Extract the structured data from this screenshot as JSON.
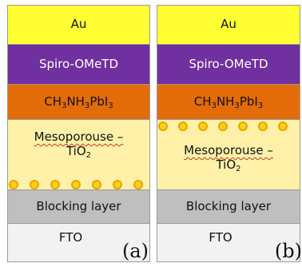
{
  "colors": {
    "au": "#ffff33",
    "spiro": "#7030a0",
    "mapi": "#e36c09",
    "meso": "#fff2a8",
    "blocking": "#bfbfbf",
    "fto": "#f2f2f2",
    "dot_fill": "#ffd11a",
    "dot_border": "#e7a400",
    "panel_border": "#9a9a9a"
  },
  "panels": [
    {
      "panel_label": "(a)",
      "layers": {
        "au": "Au",
        "spiro": "Spiro-OMeTD",
        "mapi": "CH3NH3PbI3",
        "meso_line1": "Mesoporouse –",
        "meso_line2": "TiO2",
        "blocking": "Blocking layer",
        "fto": "FTO"
      },
      "dots_count": 7
    },
    {
      "panel_label": "(b)",
      "layers": {
        "au": "Au",
        "spiro": "Spiro-OMeTD",
        "mapi": "CH3NH3PbI3",
        "meso_line1": "Mesoporouse –",
        "meso_line2": "TiO2",
        "blocking": "Blocking layer",
        "fto": "FTO"
      },
      "dots_count": 7
    }
  ]
}
